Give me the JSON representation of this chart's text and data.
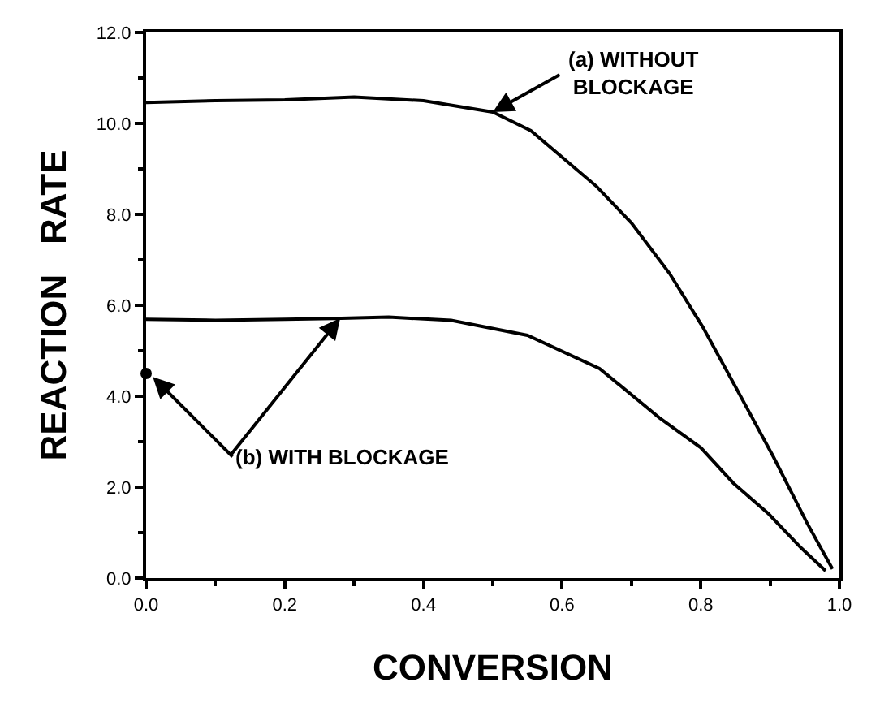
{
  "chart_data": {
    "type": "line",
    "xlabel": "CONVERSION",
    "ylabel": "REACTION   RATE",
    "xlim": [
      0,
      1.0
    ],
    "ylim": [
      0,
      12.0
    ],
    "xticks": [
      {
        "value": 0,
        "label": "0.0"
      },
      {
        "value": 0.2,
        "label": "0.2"
      },
      {
        "value": 0.4,
        "label": "0.4"
      },
      {
        "value": 0.6,
        "label": "0.6"
      },
      {
        "value": 0.8,
        "label": "0.8"
      },
      {
        "value": 1.0,
        "label": "1.0"
      }
    ],
    "yticks": [
      {
        "value": 0,
        "label": "0.0"
      },
      {
        "value": 2,
        "label": "2.0"
      },
      {
        "value": 4,
        "label": "4.0"
      },
      {
        "value": 6,
        "label": "6.0"
      },
      {
        "value": 8,
        "label": "8.0"
      },
      {
        "value": 10,
        "label": "10.0"
      },
      {
        "value": 12,
        "label": "12.0"
      }
    ],
    "marker": "none",
    "line_style": "solid",
    "series": [
      {
        "color": "#000000",
        "x": [
          0,
          0.1,
          0.2,
          0.3,
          0.4,
          0.5,
          0.555,
          0.65,
          0.7,
          0.755,
          0.803,
          0.85,
          0.905,
          0.953,
          0.99
        ],
        "values": [
          10.46,
          10.5,
          10.52,
          10.58,
          10.5,
          10.25,
          9.84,
          8.61,
          7.81,
          6.7,
          5.52,
          4.21,
          2.66,
          1.22,
          0.2
        ]
      },
      {
        "color": "#000000",
        "x": [
          0,
          0.1,
          0.2,
          0.27,
          0.35,
          0.44,
          0.55,
          0.654,
          0.74,
          0.8,
          0.847,
          0.898,
          0.945,
          0.98
        ],
        "values": [
          5.69,
          5.67,
          5.69,
          5.71,
          5.74,
          5.67,
          5.34,
          4.61,
          3.53,
          2.87,
          2.09,
          1.41,
          0.66,
          0.16
        ]
      },
      {
        "type": "scatter",
        "marker": "circle",
        "color": "#000000",
        "x": [
          0
        ],
        "values": [
          4.5
        ]
      }
    ],
    "annotations": [
      {
        "text": "(a) WITHOUT\nBLOCKAGE",
        "x": 0.5,
        "y": 10.25
      },
      {
        "text": "(b) WITH BLOCKAGE",
        "x": 0.28,
        "y": 5.72
      }
    ]
  }
}
